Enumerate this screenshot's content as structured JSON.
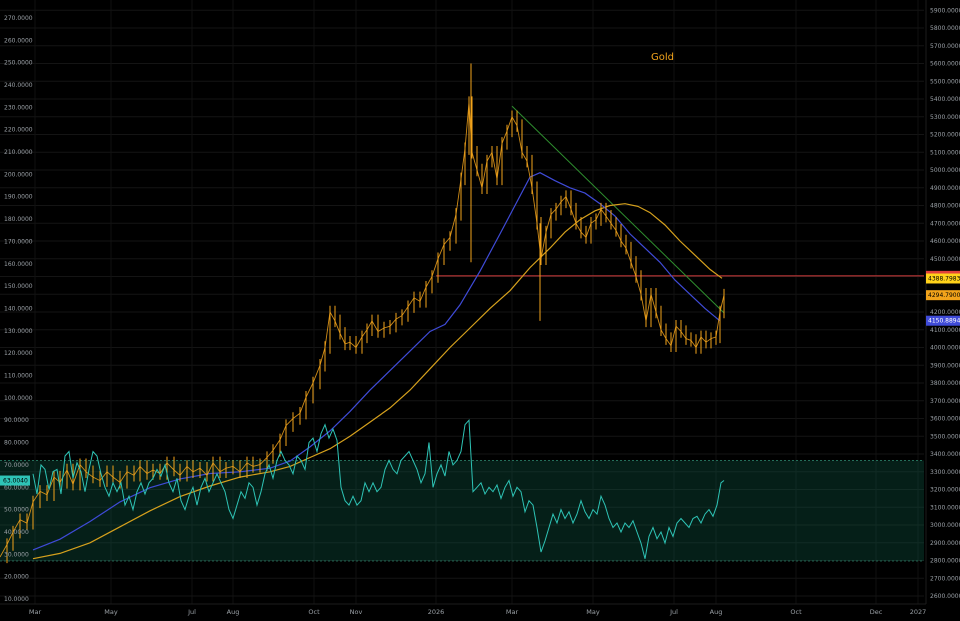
{
  "chart_data": {
    "type": "line",
    "title": "Gold",
    "colors": {
      "background": "#000000",
      "price": "#f2a31b",
      "ma_fast": "#3f4bd8",
      "ma_slow": "#d6a11d",
      "oscillator": "#2ec4b6",
      "band": "#0f5a45",
      "support": "#d63c3c",
      "trendline": "#2f8f2f"
    },
    "x_ticks": [
      "Mar",
      "May",
      "Jul",
      "Aug",
      "Oct",
      "Nov",
      "2026",
      "Mar",
      "May",
      "Jul",
      "Aug",
      "Oct",
      "Dec",
      "2027"
    ],
    "y_left_ticks": [
      "10.0000",
      "20.0000",
      "30.0000",
      "40.0000",
      "50.0000",
      "60.0000",
      "70.0000",
      "80.0000",
      "90.0000",
      "100.0000",
      "110.0000",
      "120.0000",
      "130.0000",
      "140.0000",
      "150.0000",
      "160.0000",
      "170.0000",
      "180.0000",
      "190.0000",
      "200.0000",
      "210.0000",
      "220.0000",
      "230.0000",
      "240.0000",
      "250.0000",
      "260.0000",
      "270.0000"
    ],
    "y_right_ticks": [
      "2600.0000",
      "2700.0000",
      "2800.0000",
      "2900.0000",
      "3000.0000",
      "3100.0000",
      "3200.0000",
      "3300.0000",
      "3400.0000",
      "3500.0000",
      "3600.0000",
      "3700.0000",
      "3800.0000",
      "3900.0000",
      "4000.0000",
      "4100.0000",
      "4200.0000",
      "4300.0000",
      "4400.0000",
      "4500.0000",
      "4600.0000",
      "4700.0000",
      "4800.0000",
      "4900.0000",
      "5000.0000",
      "5100.0000",
      "5200.0000",
      "5300.0000",
      "5400.0000",
      "5500.0000",
      "5600.0000",
      "5700.0000",
      "5800.0000",
      "5900.0000"
    ],
    "left_badge": {
      "label": "63.0040",
      "value": 63.004
    },
    "right_badges": [
      {
        "label": "4403.6914",
        "value": 4403.6914,
        "color": "#e0413c",
        "text_color": "#ffffff"
      },
      {
        "label": "4388.7983",
        "value": 4388.7983,
        "color": "#ffd21a",
        "text_color": "#000000"
      },
      {
        "label": "4294.7900",
        "value": 4294.79,
        "color": "#f2a31b",
        "text_color": "#000000"
      },
      {
        "label": "4150.8894",
        "value": 4150.8894,
        "color": "#3f4bd8",
        "text_color": "#ffffff"
      }
    ],
    "support_level": 4403.6914,
    "band_range": [
      27,
      72
    ],
    "price_series": [
      [
        0,
        2820
      ],
      [
        7,
        2890
      ],
      [
        13,
        2960
      ],
      [
        20,
        3030
      ],
      [
        27,
        3010
      ],
      [
        33,
        3130
      ],
      [
        40,
        3190
      ],
      [
        47,
        3170
      ],
      [
        54,
        3270
      ],
      [
        60,
        3240
      ],
      [
        67,
        3310
      ],
      [
        73,
        3230
      ],
      [
        80,
        3340
      ],
      [
        86,
        3300
      ],
      [
        93,
        3270
      ],
      [
        100,
        3250
      ],
      [
        107,
        3300
      ],
      [
        113,
        3270
      ],
      [
        120,
        3240
      ],
      [
        127,
        3300
      ],
      [
        134,
        3280
      ],
      [
        140,
        3330
      ],
      [
        147,
        3290
      ],
      [
        153,
        3310
      ],
      [
        160,
        3290
      ],
      [
        167,
        3350
      ],
      [
        174,
        3310
      ],
      [
        180,
        3280
      ],
      [
        187,
        3330
      ],
      [
        193,
        3300
      ],
      [
        200,
        3320
      ],
      [
        207,
        3280
      ],
      [
        213,
        3350
      ],
      [
        220,
        3300
      ],
      [
        226,
        3320
      ],
      [
        233,
        3330
      ],
      [
        240,
        3300
      ],
      [
        247,
        3350
      ],
      [
        253,
        3330
      ],
      [
        260,
        3340
      ],
      [
        267,
        3380
      ],
      [
        273,
        3420
      ],
      [
        280,
        3480
      ],
      [
        286,
        3560
      ],
      [
        293,
        3600
      ],
      [
        300,
        3630
      ],
      [
        306,
        3720
      ],
      [
        313,
        3800
      ],
      [
        320,
        3900
      ],
      [
        325,
        4000
      ],
      [
        330,
        4200
      ],
      [
        335,
        4150
      ],
      [
        340,
        4080
      ],
      [
        345,
        4020
      ],
      [
        350,
        4030
      ],
      [
        356,
        4000
      ],
      [
        362,
        4060
      ],
      [
        367,
        4100
      ],
      [
        372,
        4150
      ],
      [
        378,
        4090
      ],
      [
        384,
        4110
      ],
      [
        390,
        4120
      ],
      [
        396,
        4160
      ],
      [
        402,
        4180
      ],
      [
        408,
        4230
      ],
      [
        414,
        4280
      ],
      [
        420,
        4260
      ],
      [
        426,
        4340
      ],
      [
        432,
        4400
      ],
      [
        438,
        4500
      ],
      [
        444,
        4580
      ],
      [
        450,
        4620
      ],
      [
        456,
        4750
      ],
      [
        461,
        4950
      ],
      [
        465,
        5120
      ],
      [
        469,
        5380
      ],
      [
        472,
        5100
      ],
      [
        477,
        5000
      ],
      [
        482,
        4900
      ],
      [
        487,
        5050
      ],
      [
        492,
        5100
      ],
      [
        497,
        4950
      ],
      [
        502,
        5150
      ],
      [
        507,
        5220
      ],
      [
        512,
        5300
      ],
      [
        517,
        5250
      ],
      [
        522,
        5100
      ],
      [
        527,
        5050
      ],
      [
        532,
        4900
      ],
      [
        537,
        4700
      ],
      [
        541,
        4500
      ],
      [
        546,
        4650
      ],
      [
        551,
        4750
      ],
      [
        556,
        4780
      ],
      [
        561,
        4820
      ],
      [
        566,
        4850
      ],
      [
        571,
        4780
      ],
      [
        576,
        4700
      ],
      [
        581,
        4650
      ],
      [
        586,
        4620
      ],
      [
        591,
        4700
      ],
      [
        596,
        4720
      ],
      [
        601,
        4780
      ],
      [
        606,
        4740
      ],
      [
        611,
        4700
      ],
      [
        616,
        4660
      ],
      [
        621,
        4600
      ],
      [
        626,
        4560
      ],
      [
        631,
        4480
      ],
      [
        636,
        4400
      ],
      [
        641,
        4300
      ],
      [
        646,
        4150
      ],
      [
        651,
        4300
      ],
      [
        656,
        4200
      ],
      [
        661,
        4100
      ],
      [
        666,
        4050
      ],
      [
        671,
        4010
      ],
      [
        676,
        4120
      ],
      [
        681,
        4090
      ],
      [
        686,
        4050
      ],
      [
        691,
        4040
      ],
      [
        696,
        4000
      ],
      [
        701,
        4060
      ],
      [
        706,
        4030
      ],
      [
        711,
        4050
      ],
      [
        716,
        4060
      ],
      [
        720,
        4200
      ],
      [
        724,
        4295
      ]
    ],
    "ma_fast": [
      [
        33,
        2860
      ],
      [
        60,
        2920
      ],
      [
        90,
        3020
      ],
      [
        120,
        3130
      ],
      [
        150,
        3210
      ],
      [
        180,
        3260
      ],
      [
        210,
        3290
      ],
      [
        240,
        3300
      ],
      [
        270,
        3320
      ],
      [
        290,
        3360
      ],
      [
        310,
        3440
      ],
      [
        330,
        3530
      ],
      [
        350,
        3640
      ],
      [
        370,
        3760
      ],
      [
        390,
        3870
      ],
      [
        410,
        3980
      ],
      [
        430,
        4090
      ],
      [
        445,
        4130
      ],
      [
        460,
        4240
      ],
      [
        480,
        4430
      ],
      [
        500,
        4640
      ],
      [
        515,
        4800
      ],
      [
        530,
        4960
      ],
      [
        540,
        4985
      ],
      [
        555,
        4940
      ],
      [
        570,
        4900
      ],
      [
        585,
        4870
      ],
      [
        600,
        4810
      ],
      [
        615,
        4740
      ],
      [
        630,
        4640
      ],
      [
        645,
        4560
      ],
      [
        660,
        4480
      ],
      [
        675,
        4380
      ],
      [
        690,
        4300
      ],
      [
        705,
        4220
      ],
      [
        720,
        4150
      ]
    ],
    "ma_slow": [
      [
        33,
        2810
      ],
      [
        60,
        2840
      ],
      [
        90,
        2900
      ],
      [
        120,
        2990
      ],
      [
        150,
        3080
      ],
      [
        180,
        3160
      ],
      [
        210,
        3220
      ],
      [
        240,
        3270
      ],
      [
        270,
        3300
      ],
      [
        290,
        3330
      ],
      [
        310,
        3380
      ],
      [
        330,
        3430
      ],
      [
        350,
        3500
      ],
      [
        370,
        3580
      ],
      [
        390,
        3660
      ],
      [
        410,
        3760
      ],
      [
        430,
        3880
      ],
      [
        450,
        4000
      ],
      [
        470,
        4110
      ],
      [
        490,
        4220
      ],
      [
        510,
        4320
      ],
      [
        530,
        4450
      ],
      [
        550,
        4560
      ],
      [
        565,
        4650
      ],
      [
        580,
        4720
      ],
      [
        595,
        4770
      ],
      [
        610,
        4800
      ],
      [
        625,
        4810
      ],
      [
        638,
        4795
      ],
      [
        650,
        4760
      ],
      [
        665,
        4690
      ],
      [
        680,
        4600
      ],
      [
        695,
        4520
      ],
      [
        710,
        4440
      ],
      [
        722,
        4390
      ]
    ],
    "oscillator": [
      [
        33,
        66
      ],
      [
        37,
        57
      ],
      [
        41,
        70
      ],
      [
        45,
        68
      ],
      [
        49,
        59
      ],
      [
        53,
        67
      ],
      [
        57,
        68
      ],
      [
        61,
        57
      ],
      [
        65,
        74
      ],
      [
        69,
        76
      ],
      [
        73,
        64
      ],
      [
        77,
        71
      ],
      [
        81,
        67
      ],
      [
        85,
        58
      ],
      [
        89,
        68
      ],
      [
        93,
        76
      ],
      [
        97,
        74
      ],
      [
        101,
        66
      ],
      [
        105,
        60
      ],
      [
        109,
        56
      ],
      [
        113,
        62
      ],
      [
        117,
        58
      ],
      [
        121,
        62
      ],
      [
        125,
        52
      ],
      [
        129,
        56
      ],
      [
        133,
        50
      ],
      [
        137,
        58
      ],
      [
        141,
        62
      ],
      [
        145,
        57
      ],
      [
        149,
        62
      ],
      [
        153,
        64
      ],
      [
        157,
        68
      ],
      [
        161,
        65
      ],
      [
        165,
        70
      ],
      [
        169,
        62
      ],
      [
        173,
        58
      ],
      [
        177,
        64
      ],
      [
        181,
        54
      ],
      [
        185,
        50
      ],
      [
        189,
        56
      ],
      [
        193,
        60
      ],
      [
        197,
        52
      ],
      [
        201,
        60
      ],
      [
        205,
        64
      ],
      [
        209,
        58
      ],
      [
        213,
        62
      ],
      [
        217,
        66
      ],
      [
        221,
        62
      ],
      [
        225,
        58
      ],
      [
        229,
        50
      ],
      [
        233,
        46
      ],
      [
        237,
        52
      ],
      [
        241,
        58
      ],
      [
        245,
        55
      ],
      [
        249,
        62
      ],
      [
        253,
        60
      ],
      [
        257,
        52
      ],
      [
        261,
        58
      ],
      [
        265,
        66
      ],
      [
        269,
        70
      ],
      [
        273,
        64
      ],
      [
        277,
        72
      ],
      [
        281,
        76
      ],
      [
        285,
        72
      ],
      [
        289,
        70
      ],
      [
        293,
        66
      ],
      [
        297,
        74
      ],
      [
        301,
        72
      ],
      [
        305,
        68
      ],
      [
        309,
        80
      ],
      [
        313,
        82
      ],
      [
        317,
        76
      ],
      [
        321,
        84
      ],
      [
        325,
        88
      ],
      [
        329,
        82
      ],
      [
        333,
        86
      ],
      [
        337,
        81
      ],
      [
        341,
        60
      ],
      [
        345,
        54
      ],
      [
        349,
        52
      ],
      [
        353,
        56
      ],
      [
        357,
        52
      ],
      [
        361,
        54
      ],
      [
        365,
        62
      ],
      [
        369,
        58
      ],
      [
        373,
        62
      ],
      [
        377,
        58
      ],
      [
        381,
        60
      ],
      [
        385,
        68
      ],
      [
        389,
        72
      ],
      [
        393,
        68
      ],
      [
        397,
        66
      ],
      [
        401,
        72
      ],
      [
        405,
        74
      ],
      [
        409,
        76
      ],
      [
        413,
        72
      ],
      [
        417,
        68
      ],
      [
        421,
        62
      ],
      [
        425,
        66
      ],
      [
        429,
        80
      ],
      [
        433,
        60
      ],
      [
        437,
        66
      ],
      [
        441,
        70
      ],
      [
        445,
        65
      ],
      [
        449,
        76
      ],
      [
        453,
        70
      ],
      [
        457,
        72
      ],
      [
        461,
        76
      ],
      [
        465,
        88
      ],
      [
        469,
        90
      ],
      [
        473,
        58
      ],
      [
        477,
        60
      ],
      [
        481,
        62
      ],
      [
        485,
        57
      ],
      [
        489,
        60
      ],
      [
        493,
        58
      ],
      [
        497,
        61
      ],
      [
        501,
        55
      ],
      [
        505,
        60
      ],
      [
        509,
        63
      ],
      [
        513,
        56
      ],
      [
        517,
        60
      ],
      [
        521,
        58
      ],
      [
        525,
        49
      ],
      [
        529,
        54
      ],
      [
        533,
        52
      ],
      [
        537,
        42
      ],
      [
        541,
        31
      ],
      [
        545,
        36
      ],
      [
        549,
        42
      ],
      [
        553,
        48
      ],
      [
        557,
        44
      ],
      [
        561,
        50
      ],
      [
        565,
        46
      ],
      [
        569,
        49
      ],
      [
        573,
        44
      ],
      [
        577,
        48
      ],
      [
        581,
        54
      ],
      [
        585,
        49
      ],
      [
        589,
        46
      ],
      [
        593,
        50
      ],
      [
        597,
        48
      ],
      [
        601,
        56
      ],
      [
        605,
        52
      ],
      [
        609,
        46
      ],
      [
        613,
        42
      ],
      [
        617,
        44
      ],
      [
        621,
        40
      ],
      [
        625,
        44
      ],
      [
        629,
        42
      ],
      [
        633,
        45
      ],
      [
        637,
        40
      ],
      [
        641,
        35
      ],
      [
        645,
        28
      ],
      [
        649,
        38
      ],
      [
        653,
        42
      ],
      [
        657,
        37
      ],
      [
        661,
        40
      ],
      [
        665,
        35
      ],
      [
        669,
        42
      ],
      [
        673,
        38
      ],
      [
        677,
        44
      ],
      [
        681,
        46
      ],
      [
        685,
        44
      ],
      [
        689,
        42
      ],
      [
        693,
        46
      ],
      [
        697,
        47
      ],
      [
        701,
        44
      ],
      [
        705,
        48
      ],
      [
        709,
        50
      ],
      [
        713,
        47
      ],
      [
        717,
        52
      ],
      [
        721,
        62
      ],
      [
        724,
        63
      ]
    ]
  }
}
